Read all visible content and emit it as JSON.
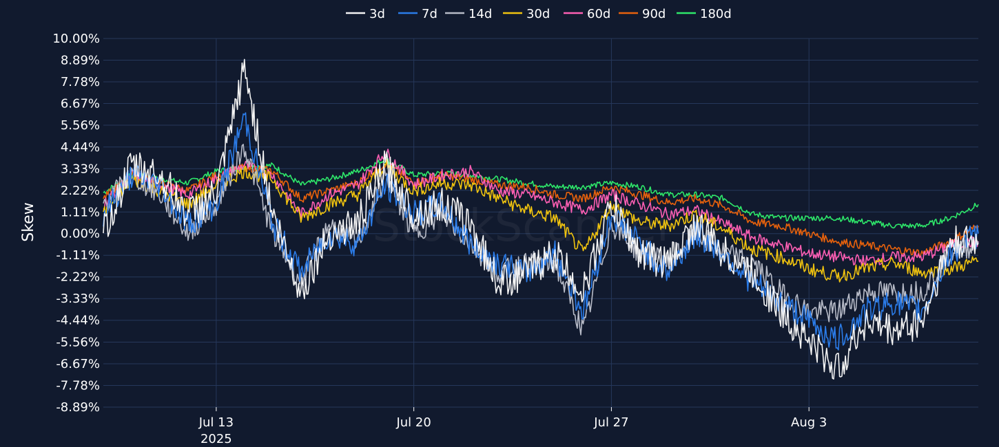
{
  "chart_data": {
    "type": "line",
    "ylabel": "Skew",
    "ylim": [
      -0.0889,
      0.1
    ],
    "y_ticks": [
      "10.00%",
      "8.89%",
      "7.78%",
      "6.67%",
      "5.56%",
      "4.44%",
      "3.33%",
      "2.22%",
      "1.11%",
      "0.00%",
      "-1.11%",
      "-2.22%",
      "-3.33%",
      "-4.44%",
      "-5.56%",
      "-6.67%",
      "-7.78%",
      "-8.89%"
    ],
    "y_tick_values": [
      0.1,
      0.0889,
      0.0778,
      0.0667,
      0.0556,
      0.0444,
      0.0333,
      0.0222,
      0.0111,
      0.0,
      -0.0111,
      -0.0222,
      -0.0333,
      -0.0444,
      -0.0556,
      -0.0667,
      -0.0778,
      -0.0889
    ],
    "xlim": [
      "2025-07-09",
      "2025-08-09"
    ],
    "x_ticks": [
      {
        "date": "2025-07-13",
        "label": "Jul 13",
        "sublabel": "2025"
      },
      {
        "date": "2025-07-20",
        "label": "Jul 20",
        "sublabel": ""
      },
      {
        "date": "2025-07-27",
        "label": "Jul 27",
        "sublabel": ""
      },
      {
        "date": "2025-08-03",
        "label": "Aug 3",
        "sublabel": ""
      }
    ],
    "grid": true,
    "legend_position": "top-center",
    "x": [
      "2025-07-09",
      "2025-07-10",
      "2025-07-11",
      "2025-07-12",
      "2025-07-13",
      "2025-07-14",
      "2025-07-15",
      "2025-07-16",
      "2025-07-17",
      "2025-07-18",
      "2025-07-19",
      "2025-07-20",
      "2025-07-21",
      "2025-07-22",
      "2025-07-23",
      "2025-07-24",
      "2025-07-25",
      "2025-07-26",
      "2025-07-27",
      "2025-07-28",
      "2025-07-29",
      "2025-07-30",
      "2025-07-31",
      "2025-08-01",
      "2025-08-02",
      "2025-08-03",
      "2025-08-04",
      "2025-08-05",
      "2025-08-06",
      "2025-08-07",
      "2025-08-08",
      "2025-08-09"
    ],
    "series": [
      {
        "name": "3d",
        "color": "#f4f4f4",
        "values": [
          0.0,
          0.035,
          0.03,
          0.01,
          0.02,
          0.085,
          0.01,
          -0.03,
          0.0,
          0.005,
          0.035,
          0.01,
          0.015,
          0.005,
          -0.025,
          -0.02,
          -0.01,
          -0.03,
          0.015,
          -0.01,
          -0.015,
          0.005,
          -0.01,
          -0.02,
          -0.04,
          -0.055,
          -0.07,
          -0.045,
          -0.05,
          -0.045,
          -0.005,
          -0.005
        ]
      },
      {
        "name": "7d",
        "color": "#2b7ce9",
        "values": [
          0.01,
          0.03,
          0.025,
          0.005,
          0.015,
          0.06,
          0.005,
          -0.02,
          0.0,
          -0.005,
          0.025,
          0.01,
          0.015,
          -0.005,
          -0.015,
          -0.02,
          -0.01,
          -0.04,
          0.01,
          -0.005,
          -0.02,
          0.0,
          -0.01,
          -0.025,
          -0.035,
          -0.045,
          -0.055,
          -0.04,
          -0.035,
          -0.04,
          -0.01,
          0.0
        ]
      },
      {
        "name": "14d",
        "color": "#b8bcc8",
        "values": [
          0.015,
          0.03,
          0.02,
          0.0,
          0.015,
          0.045,
          0.0,
          -0.025,
          0.005,
          -0.005,
          0.03,
          0.0,
          0.01,
          -0.005,
          -0.02,
          -0.015,
          -0.015,
          -0.05,
          0.005,
          -0.01,
          -0.015,
          0.0,
          -0.01,
          -0.015,
          -0.03,
          -0.04,
          -0.04,
          -0.03,
          -0.03,
          -0.03,
          -0.01,
          -0.005
        ]
      },
      {
        "name": "30d",
        "color": "#f1c40f",
        "values": [
          0.01,
          0.028,
          0.022,
          0.015,
          0.025,
          0.032,
          0.028,
          0.008,
          0.015,
          0.02,
          0.035,
          0.022,
          0.026,
          0.025,
          0.018,
          0.012,
          0.008,
          -0.01,
          0.015,
          0.006,
          0.004,
          0.01,
          0.002,
          -0.008,
          -0.012,
          -0.018,
          -0.022,
          -0.018,
          -0.015,
          -0.02,
          -0.018,
          -0.014
        ]
      },
      {
        "name": "60d",
        "color": "#ff5fb4",
        "values": [
          0.015,
          0.03,
          0.025,
          0.02,
          0.028,
          0.035,
          0.03,
          0.01,
          0.02,
          0.025,
          0.042,
          0.025,
          0.03,
          0.032,
          0.022,
          0.02,
          0.016,
          0.012,
          0.02,
          0.015,
          0.01,
          0.012,
          0.005,
          -0.002,
          -0.006,
          -0.01,
          -0.012,
          -0.014,
          -0.012,
          -0.012,
          -0.006,
          -0.004
        ]
      },
      {
        "name": "90d",
        "color": "#e8620c",
        "values": [
          0.018,
          0.03,
          0.026,
          0.022,
          0.03,
          0.034,
          0.032,
          0.018,
          0.022,
          0.026,
          0.036,
          0.026,
          0.03,
          0.028,
          0.025,
          0.024,
          0.02,
          0.018,
          0.024,
          0.02,
          0.016,
          0.018,
          0.014,
          0.006,
          0.004,
          0.0,
          -0.004,
          -0.006,
          -0.008,
          -0.01,
          -0.004,
          0.004
        ]
      },
      {
        "name": "180d",
        "color": "#2ee86a",
        "values": [
          0.021,
          0.03,
          0.028,
          0.026,
          0.032,
          0.034,
          0.035,
          0.025,
          0.028,
          0.032,
          0.038,
          0.03,
          0.031,
          0.03,
          0.028,
          0.026,
          0.024,
          0.024,
          0.026,
          0.024,
          0.02,
          0.02,
          0.018,
          0.01,
          0.008,
          0.008,
          0.008,
          0.006,
          0.004,
          0.004,
          0.008,
          0.015
        ]
      }
    ]
  }
}
